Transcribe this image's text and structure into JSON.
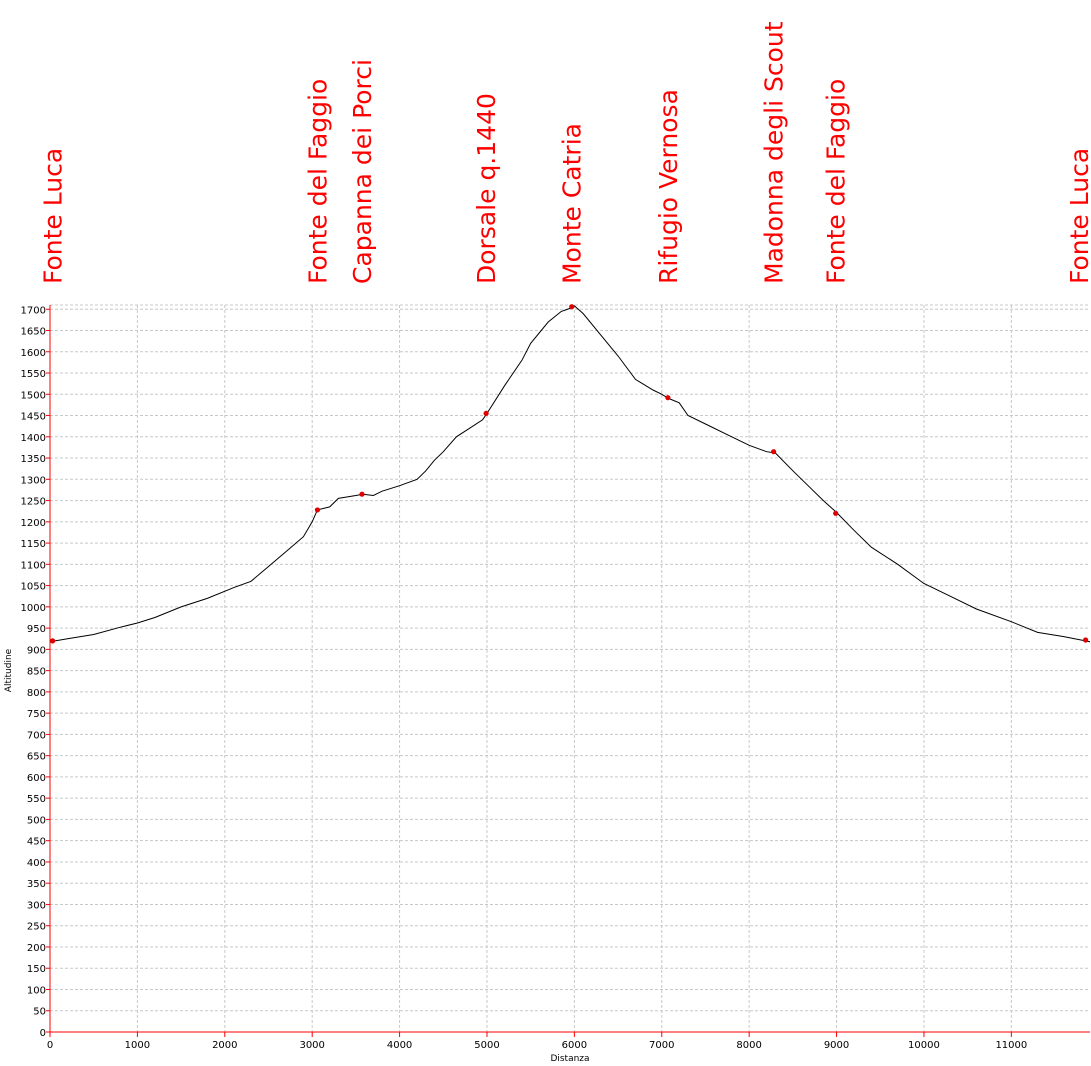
{
  "chart_data": {
    "type": "line",
    "title": "",
    "xlabel": "Distanza",
    "ylabel": "Altitudine",
    "xlim": [
      0,
      11900
    ],
    "ylim": [
      0,
      1710
    ],
    "x_ticks": [
      0,
      1000,
      2000,
      3000,
      4000,
      5000,
      6000,
      7000,
      8000,
      9000,
      10000,
      11000
    ],
    "y_ticks": [
      0,
      50,
      100,
      150,
      200,
      250,
      300,
      350,
      400,
      450,
      500,
      550,
      600,
      650,
      700,
      750,
      800,
      850,
      900,
      950,
      1000,
      1050,
      1100,
      1150,
      1200,
      1250,
      1300,
      1350,
      1400,
      1450,
      1500,
      1550,
      1600,
      1650,
      1700
    ],
    "grid": true,
    "colors": {
      "line": "#000000",
      "axis": "#ff0000",
      "grid": "#c8c8c8",
      "waypoint": "#e00000",
      "label": "#ff0000"
    },
    "series": [
      {
        "x": [
          0,
          200,
          500,
          800,
          1000,
          1200,
          1500,
          1800,
          2100,
          2300,
          2500,
          2700,
          2900,
          3000,
          3060,
          3200,
          3300,
          3500,
          3580,
          3700,
          3800,
          4000,
          4200,
          4300,
          4400,
          4500,
          4650,
          4800,
          4950,
          5000,
          5200,
          5400,
          5500,
          5700,
          5850,
          5950,
          6000,
          6100,
          6300,
          6500,
          6700,
          6900,
          7000,
          7080,
          7200,
          7300,
          7500,
          7800,
          8000,
          8200,
          8300,
          8500,
          8700,
          8850,
          9000,
          9200,
          9400,
          9700,
          10000,
          10300,
          10600,
          11000,
          11300,
          11600,
          11900
        ],
        "y": [
          918,
          925,
          935,
          952,
          962,
          975,
          1000,
          1020,
          1045,
          1060,
          1095,
          1130,
          1165,
          1200,
          1228,
          1235,
          1255,
          1262,
          1265,
          1262,
          1272,
          1285,
          1300,
          1320,
          1345,
          1365,
          1400,
          1420,
          1440,
          1455,
          1520,
          1580,
          1620,
          1670,
          1695,
          1702,
          1708,
          1690,
          1640,
          1590,
          1535,
          1510,
          1500,
          1490,
          1480,
          1450,
          1430,
          1400,
          1380,
          1365,
          1362,
          1320,
          1280,
          1250,
          1222,
          1180,
          1140,
          1100,
          1055,
          1025,
          995,
          965,
          940,
          930,
          918
        ]
      }
    ],
    "waypoints": [
      {
        "x": 30,
        "y": 920
      },
      {
        "x": 3060,
        "y": 1228
      },
      {
        "x": 3570,
        "y": 1265
      },
      {
        "x": 4990,
        "y": 1455
      },
      {
        "x": 5970,
        "y": 1706
      },
      {
        "x": 7070,
        "y": 1492
      },
      {
        "x": 8280,
        "y": 1365
      },
      {
        "x": 8990,
        "y": 1220
      },
      {
        "x": 11850,
        "y": 922
      }
    ],
    "labels": [
      {
        "x": 30,
        "text": "Fonte Luca"
      },
      {
        "x": 3060,
        "text": "Fonte del Faggio"
      },
      {
        "x": 3570,
        "text": "Capanna dei Porci"
      },
      {
        "x": 4990,
        "text": "Dorsale q.1440"
      },
      {
        "x": 5970,
        "text": "Monte Catria"
      },
      {
        "x": 7070,
        "text": "Rifugio Vernosa"
      },
      {
        "x": 8280,
        "text": "Madonna degli Scout"
      },
      {
        "x": 8990,
        "text": "Fonte del Faggio"
      },
      {
        "x": 11850,
        "text": "Fonte Luca"
      }
    ]
  }
}
